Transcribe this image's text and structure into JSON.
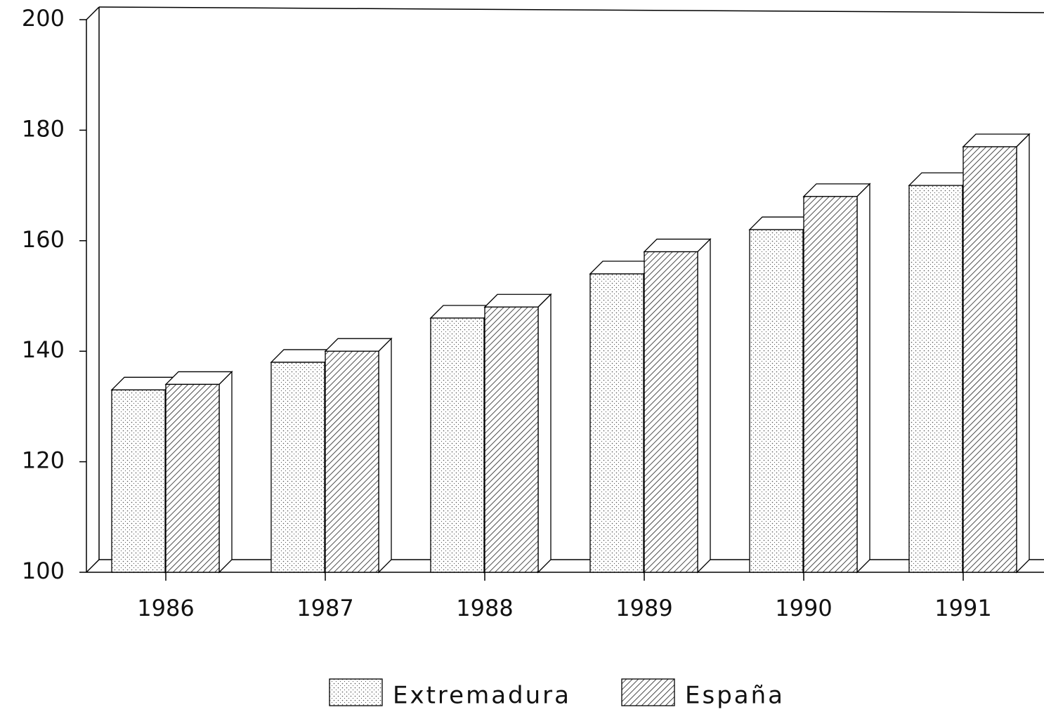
{
  "chart_data": {
    "type": "bar3d",
    "categories": [
      "1986",
      "1987",
      "1988",
      "1989",
      "1990",
      "1991"
    ],
    "series": [
      {
        "name": "Extremadura",
        "color": "#555555",
        "pattern": "dots",
        "values": [
          133,
          138,
          146,
          154,
          162,
          170
        ]
      },
      {
        "name": "España",
        "color": "#222222",
        "pattern": "hatch",
        "values": [
          134,
          140,
          148,
          158,
          168,
          177
        ]
      }
    ],
    "ylim": [
      100,
      200
    ],
    "yticks": [
      100,
      120,
      140,
      160,
      180,
      200
    ],
    "grid": false,
    "legend": "bottom"
  }
}
